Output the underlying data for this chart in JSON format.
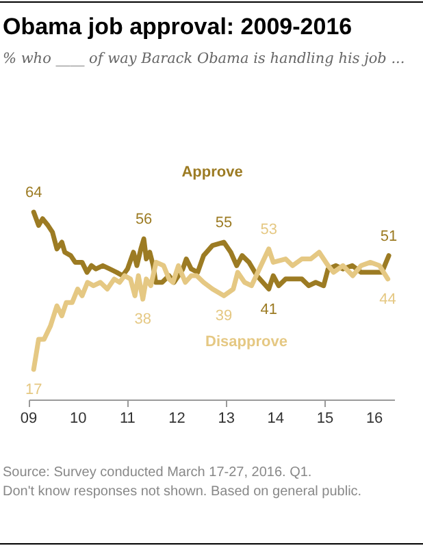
{
  "chart_data": {
    "type": "line",
    "title": "Obama job approval: 2009-2016",
    "subtitle": "% who ____ of way Barack Obama is handling his job ...",
    "annotations": [
      "Source: Survey conducted March 17-27, 2016. Q1.",
      "Don't know responses not shown. Based on general public."
    ],
    "xlim": [
      2009,
      2016.4
    ],
    "xticks": [
      {
        "value": 2009,
        "label": "09"
      },
      {
        "value": 2010,
        "label": "10"
      },
      {
        "value": 2011,
        "label": "11"
      },
      {
        "value": 2012,
        "label": "12"
      },
      {
        "value": 2013,
        "label": "13"
      },
      {
        "value": 2014,
        "label": "14"
      },
      {
        "value": 2015,
        "label": "15"
      },
      {
        "value": 2016,
        "label": "16"
      }
    ],
    "tick_labels": "x",
    "grid": false,
    "legend": false,
    "series": [
      {
        "name": "Approve",
        "color": "#9c7b23",
        "x": [
          2009.1,
          2009.2,
          2009.28,
          2009.39,
          2009.48,
          2009.57,
          2009.67,
          2009.73,
          2009.85,
          2009.94,
          2010.08,
          2010.18,
          2010.27,
          2010.36,
          2010.5,
          2010.64,
          2010.78,
          2010.9,
          2011.0,
          2011.12,
          2011.19,
          2011.27,
          2011.33,
          2011.38,
          2011.45,
          2011.52,
          2011.57,
          2011.7,
          2011.84,
          2011.94,
          2012.03,
          2012.12,
          2012.19,
          2012.29,
          2012.42,
          2012.54,
          2012.72,
          2012.95,
          2013.09,
          2013.21,
          2013.32,
          2013.46,
          2013.62,
          2013.86,
          2013.95,
          2014.06,
          2014.2,
          2014.53,
          2014.67,
          2014.81,
          2014.97,
          2015.06,
          2015.22,
          2015.36,
          2015.55,
          2015.73,
          2016.15,
          2016.29
        ],
        "values": [
          64,
          60,
          62,
          60,
          58,
          53,
          55,
          52,
          51,
          49,
          49,
          46,
          48,
          47,
          48,
          47,
          46,
          45,
          47,
          52,
          48,
          53,
          56,
          50,
          52,
          48,
          43,
          43,
          45,
          43,
          45,
          47,
          50,
          47,
          46,
          51,
          54,
          55,
          52,
          48,
          51,
          49,
          45,
          41,
          45,
          42,
          44,
          44,
          42,
          43,
          42,
          47,
          48,
          47,
          48,
          46,
          46,
          51
        ],
        "value_labels": [
          "64",
          null,
          null,
          null,
          null,
          null,
          null,
          null,
          null,
          null,
          null,
          null,
          null,
          null,
          null,
          null,
          null,
          null,
          null,
          null,
          null,
          null,
          "56",
          null,
          null,
          null,
          null,
          null,
          null,
          null,
          null,
          null,
          null,
          null,
          null,
          null,
          null,
          "55",
          null,
          null,
          null,
          null,
          null,
          "41",
          null,
          null,
          null,
          null,
          null,
          null,
          null,
          null,
          null,
          null,
          null,
          null,
          null,
          "51"
        ]
      },
      {
        "name": "Disapprove",
        "color": "#e5c883",
        "x": [
          2009.1,
          2009.2,
          2009.31,
          2009.44,
          2009.57,
          2009.67,
          2009.76,
          2009.88,
          2009.99,
          2010.08,
          2010.19,
          2010.31,
          2010.45,
          2010.59,
          2010.73,
          2010.84,
          2010.94,
          2011.06,
          2011.15,
          2011.22,
          2011.31,
          2011.38,
          2011.47,
          2011.58,
          2011.73,
          2011.84,
          2011.92,
          2012.03,
          2012.17,
          2012.29,
          2012.4,
          2012.54,
          2012.72,
          2012.95,
          2013.14,
          2013.23,
          2013.37,
          2013.51,
          2013.86,
          2013.95,
          2014.2,
          2014.34,
          2014.53,
          2014.71,
          2014.88,
          2015.06,
          2015.17,
          2015.36,
          2015.56,
          2015.73,
          2015.92,
          2016.1,
          2016.27
        ],
        "values": [
          17,
          26,
          26,
          30,
          36,
          33,
          37,
          37,
          41,
          39,
          43,
          42,
          43,
          41,
          44,
          43,
          45,
          44,
          39,
          45,
          38,
          44,
          42,
          49,
          48,
          44,
          43,
          48,
          43,
          45,
          45,
          43,
          41,
          39,
          41,
          46,
          43,
          42,
          53,
          49,
          50,
          48,
          50,
          50,
          52,
          48,
          46,
          48,
          45,
          48,
          49,
          48,
          44
        ],
        "value_labels": [
          "17",
          null,
          null,
          null,
          null,
          null,
          null,
          null,
          null,
          null,
          null,
          null,
          null,
          null,
          null,
          null,
          null,
          null,
          null,
          null,
          "38",
          null,
          null,
          null,
          null,
          null,
          null,
          null,
          null,
          null,
          null,
          null,
          null,
          "39",
          null,
          null,
          null,
          null,
          "53",
          null,
          null,
          null,
          null,
          null,
          null,
          null,
          null,
          null,
          null,
          null,
          null,
          null,
          "44"
        ]
      }
    ]
  }
}
